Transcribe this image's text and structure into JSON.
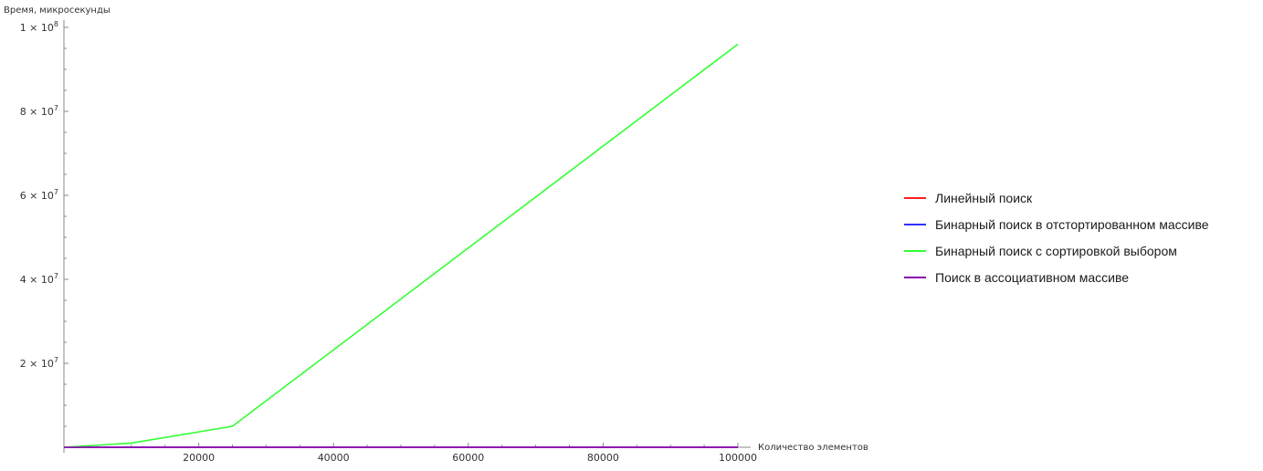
{
  "chart_data": {
    "type": "line",
    "ylabel": "Время, микросекунды",
    "xlabel": "Количество элементов",
    "x_ticks": [
      {
        "value": 20000,
        "label": "20000"
      },
      {
        "value": 40000,
        "label": "40000"
      },
      {
        "value": 60000,
        "label": "60000"
      },
      {
        "value": 80000,
        "label": "80000"
      },
      {
        "value": 100000,
        "label": "100000"
      }
    ],
    "y_ticks": [
      {
        "value": 20000000,
        "mant": "2",
        "exp": "7"
      },
      {
        "value": 40000000,
        "mant": "4",
        "exp": "7"
      },
      {
        "value": 60000000,
        "mant": "6",
        "exp": "7"
      },
      {
        "value": 80000000,
        "mant": "8",
        "exp": "7"
      },
      {
        "value": 100000000,
        "mant": "1",
        "exp": "8"
      }
    ],
    "xlim": [
      0,
      100000
    ],
    "ylim": [
      0,
      100000000
    ],
    "legend_position": "right",
    "series": [
      {
        "name": "Линейный поиск",
        "color": "#ff2020",
        "x": [
          0,
          10000,
          25000,
          100000
        ],
        "y": [
          0,
          0,
          0,
          0
        ]
      },
      {
        "name": "Бинарный поиск в отстортированном массиве",
        "color": "#3030ff",
        "x": [
          0,
          10000,
          25000,
          100000
        ],
        "y": [
          0,
          0,
          0,
          0
        ]
      },
      {
        "name": "Бинарный поиск с сортировкой выбором",
        "color": "#33ff33",
        "x": [
          0,
          10000,
          25000,
          100000
        ],
        "y": [
          0,
          1000000,
          5000000,
          96000000
        ]
      },
      {
        "name": "Поиск в ассоциативном массиве",
        "color": "#8b00aa",
        "x": [
          0,
          10000,
          25000,
          100000
        ],
        "y": [
          0,
          0,
          0,
          0
        ]
      }
    ]
  }
}
